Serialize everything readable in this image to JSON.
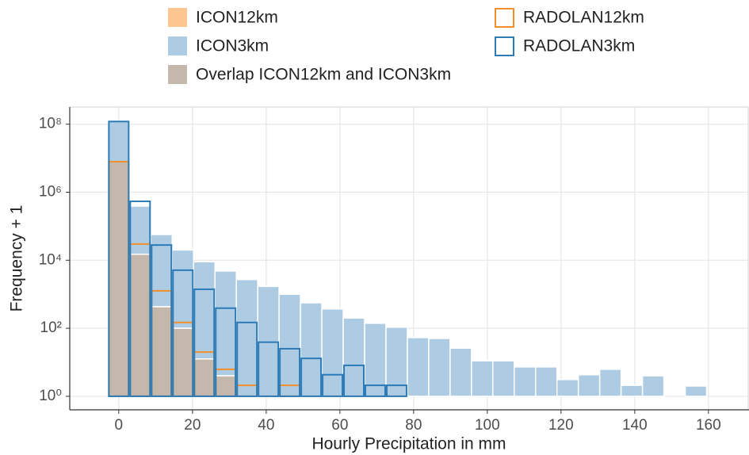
{
  "chart_data": {
    "type": "histogram",
    "x_label": "Hourly Precipitation in mm",
    "y_label": "Frequency + 1",
    "bins": [
      -2.9,
      2.9,
      8.7,
      14.5,
      20.3,
      26.1,
      31.9,
      37.7,
      43.5,
      49.3,
      55.1,
      60.9,
      66.7,
      72.5,
      78.3,
      84.1,
      89.9,
      95.7,
      101.5,
      107.3,
      113.1,
      118.9,
      124.7,
      130.5,
      136.3,
      142.1,
      147.9,
      153.7,
      159.5
    ],
    "series": [
      {
        "name": "ICON12km",
        "style": "fill",
        "color": "#fdc590",
        "values": [
          7900000,
          15000,
          430,
          100,
          12.5,
          4,
          1,
          1,
          1,
          1,
          1,
          1,
          1,
          1,
          1,
          1,
          1,
          1,
          1,
          1,
          1,
          1,
          1,
          1,
          1,
          1,
          1,
          1
        ]
      },
      {
        "name": "ICON3km",
        "style": "fill",
        "color": "#aecbe4",
        "values": [
          120000000,
          390000,
          57000,
          20000,
          9000,
          4800,
          2700,
          1700,
          1000,
          560,
          370,
          200,
          140,
          107,
          53,
          50,
          26,
          11,
          11,
          7.3,
          7.3,
          3.1,
          4.3,
          6.2,
          2.1,
          4,
          1,
          2
        ]
      },
      {
        "name": "RADOLAN12km",
        "style": "outline",
        "color": "#f28e2b",
        "values": [
          7900000,
          30000,
          1260,
          148,
          20,
          6.2,
          2.1,
          1,
          2.1,
          1,
          1,
          1,
          1,
          1,
          1,
          1,
          1,
          1,
          1,
          1,
          1,
          1,
          1,
          1,
          1,
          1,
          1,
          1
        ]
      },
      {
        "name": "RADOLAN3km",
        "style": "outline",
        "color": "#2c7bb6",
        "values": [
          120000000,
          540000,
          28000,
          5100,
          1400,
          390,
          148,
          39,
          25,
          13,
          4.3,
          8.1,
          2.1,
          2.1,
          1,
          1,
          1,
          1,
          1,
          1,
          1,
          1,
          1,
          1,
          1,
          1,
          1,
          1
        ]
      }
    ],
    "overlap": {
      "name": "Overlap ICON12km and ICON3km",
      "color": "#c4b7ab"
    },
    "xlim": [
      -13.3,
      171
    ],
    "xticks": [
      0,
      20,
      40,
      60,
      80,
      100,
      120,
      140,
      160
    ],
    "ylim": [
      0.4,
      320000000
    ],
    "yticks": [
      {
        "value": 1,
        "label": "10⁰"
      },
      {
        "value": 100,
        "label": "10²"
      },
      {
        "value": 10000,
        "label": "10⁴"
      },
      {
        "value": 1000000,
        "label": "10⁶"
      },
      {
        "value": 100000000,
        "label": "10⁸"
      }
    ],
    "log_y": true,
    "grid": true,
    "legend": "top"
  }
}
